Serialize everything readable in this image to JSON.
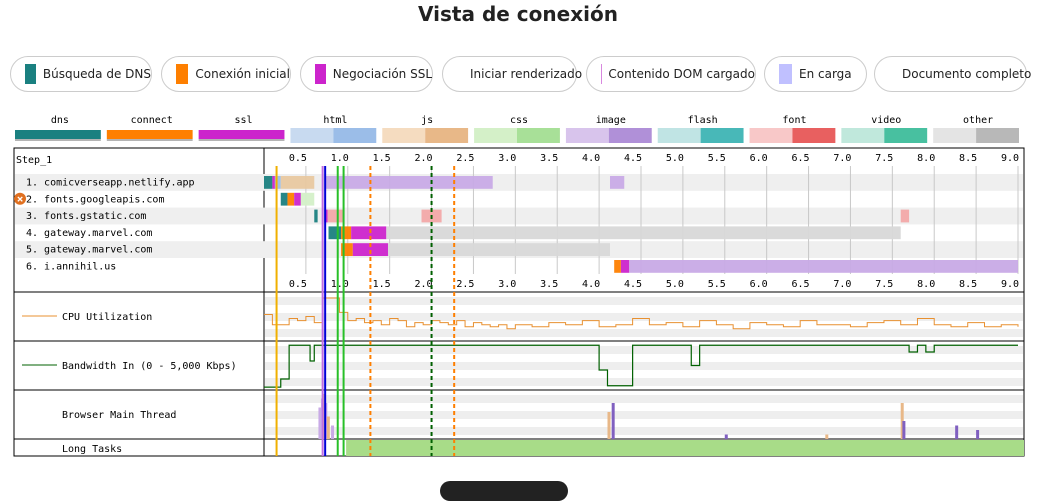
{
  "title": "Vista de conexión",
  "legend": [
    {
      "label": "Búsqueda de DNS",
      "color": "#1a8080",
      "shape": "box"
    },
    {
      "label": "Conexión inicial",
      "color": "#fe7f00",
      "shape": "box"
    },
    {
      "label": "Negociación SSL",
      "color": "#cc24cc",
      "shape": "box"
    },
    {
      "label": "Iniciar renderizado",
      "color": "#28c028",
      "shape": "line"
    },
    {
      "label": "Contenido DOM cargado",
      "color": "#d888df",
      "shape": "box"
    },
    {
      "label": "En carga",
      "color": "#c0c0ff",
      "shape": "box"
    },
    {
      "label": "Documento completo",
      "color": "#0000d8",
      "shape": "line"
    }
  ],
  "chart_data": {
    "type": "waterfall",
    "step_label": "Step_1",
    "x_unit": "seconds",
    "xlim": [
      0,
      9.0
    ],
    "x_ticks": [
      "0.5",
      "1.0",
      "1.5",
      "2.0",
      "2.5",
      "3.0",
      "3.5",
      "4.0",
      "4.5",
      "5.0",
      "5.5",
      "6.0",
      "6.5",
      "7.0",
      "7.5",
      "8.0",
      "8.5",
      "9.0"
    ],
    "type_legend": [
      {
        "name": "dns",
        "colors": [
          "#1a8080",
          "#1a8080"
        ]
      },
      {
        "name": "connect",
        "colors": [
          "#fe7f00",
          "#fe7f00"
        ]
      },
      {
        "name": "ssl",
        "colors": [
          "#cc24cc",
          "#cc24cc"
        ]
      },
      {
        "name": "html",
        "colors": [
          "#c8daf0",
          "#9bbde8"
        ]
      },
      {
        "name": "js",
        "colors": [
          "#f5dcc0",
          "#e8b888"
        ]
      },
      {
        "name": "css",
        "colors": [
          "#d4f0c8",
          "#a8e098"
        ]
      },
      {
        "name": "image",
        "colors": [
          "#d8c4ec",
          "#b090d8"
        ]
      },
      {
        "name": "flash",
        "colors": [
          "#c0e4e4",
          "#48b8b8"
        ]
      },
      {
        "name": "font",
        "colors": [
          "#f8c8c8",
          "#e86060"
        ]
      },
      {
        "name": "video",
        "colors": [
          "#c0e8dc",
          "#48c0a0"
        ]
      },
      {
        "name": "other",
        "colors": [
          "#e4e4e4",
          "#b8b8b8"
        ]
      }
    ],
    "requests": [
      {
        "label": "1. comicverseapp.netlify.app",
        "error": false,
        "segments": [
          {
            "start": 0.0,
            "end": 0.1,
            "color": "#1a8080"
          },
          {
            "start": 0.1,
            "end": 0.13,
            "color": "#cc24cc"
          },
          {
            "start": 0.13,
            "end": 0.2,
            "color": "#9bbde8"
          },
          {
            "start": 0.2,
            "end": 0.6,
            "color": "#e8c8a0"
          },
          {
            "start": 0.73,
            "end": 2.73,
            "color": "#c8aae6"
          },
          {
            "start": 4.13,
            "end": 4.3,
            "color": "#c8aae6"
          }
        ]
      },
      {
        "label": "2. fonts.googleapis.com",
        "error": true,
        "segments": [
          {
            "start": 0.2,
            "end": 0.28,
            "color": "#1a8080"
          },
          {
            "start": 0.28,
            "end": 0.36,
            "color": "#fe7f00"
          },
          {
            "start": 0.36,
            "end": 0.44,
            "color": "#cc24cc"
          },
          {
            "start": 0.44,
            "end": 0.6,
            "color": "#d4f0c8"
          }
        ]
      },
      {
        "label": "3. fonts.gstatic.com",
        "error": false,
        "segments": [
          {
            "start": 0.6,
            "end": 0.64,
            "color": "#1a8080"
          },
          {
            "start": 0.72,
            "end": 0.76,
            "color": "#cc24cc"
          },
          {
            "start": 0.76,
            "end": 0.95,
            "color": "#f2a8a8"
          },
          {
            "start": 1.88,
            "end": 2.12,
            "color": "#f2a8a8"
          },
          {
            "start": 7.6,
            "end": 7.7,
            "color": "#f2a8a8"
          }
        ]
      },
      {
        "label": "4. gateway.marvel.com",
        "error": false,
        "segments": [
          {
            "start": 0.77,
            "end": 0.92,
            "color": "#1a8080"
          },
          {
            "start": 0.92,
            "end": 1.04,
            "color": "#fe7f00"
          },
          {
            "start": 1.04,
            "end": 1.46,
            "color": "#cc24cc"
          },
          {
            "start": 1.46,
            "end": 7.6,
            "color": "#d8d8d8"
          }
        ]
      },
      {
        "label": "5. gateway.marvel.com",
        "error": false,
        "segments": [
          {
            "start": 0.92,
            "end": 1.06,
            "color": "#fe7f00"
          },
          {
            "start": 1.06,
            "end": 1.48,
            "color": "#cc24cc"
          },
          {
            "start": 1.48,
            "end": 4.13,
            "color": "#d8d8d8"
          }
        ]
      },
      {
        "label": "6. i.annihil.us",
        "error": false,
        "segments": [
          {
            "start": 4.18,
            "end": 4.26,
            "color": "#fe7f00"
          },
          {
            "start": 4.26,
            "end": 4.36,
            "color": "#cc24cc"
          },
          {
            "start": 4.36,
            "end": 9.0,
            "color": "#c8aae6"
          }
        ]
      }
    ],
    "markers": [
      {
        "name": "start",
        "x": 0.15,
        "color": "#f0b000",
        "style": "solid"
      },
      {
        "name": "dom-content",
        "x": 0.7,
        "color": "#c070e0",
        "style": "solid"
      },
      {
        "name": "document-complete",
        "x": 0.73,
        "color": "#0000d8",
        "style": "solid"
      },
      {
        "name": "start-render-1",
        "x": 0.88,
        "color": "#28c028",
        "style": "solid"
      },
      {
        "name": "start-render-2",
        "x": 0.95,
        "color": "#28c028",
        "style": "solid"
      },
      {
        "name": "load-1",
        "x": 1.27,
        "color": "#fe7f00",
        "style": "dashed"
      },
      {
        "name": "fully-loaded",
        "x": 2.0,
        "color": "#006000",
        "style": "dashed"
      },
      {
        "name": "load-2",
        "x": 2.27,
        "color": "#fe7f00",
        "style": "dashed"
      }
    ],
    "cpu": {
      "label": "CPU Utilization",
      "color": "#e89030",
      "x": [
        0,
        0.1,
        0.2,
        0.3,
        0.4,
        0.5,
        0.6,
        0.7,
        0.8,
        0.9,
        1.0,
        1.1,
        1.2,
        1.3,
        1.4,
        1.5,
        1.6,
        1.7,
        1.8,
        1.9,
        2.0,
        2.1,
        2.2,
        2.3,
        2.4,
        2.5,
        2.6,
        2.7,
        2.8,
        2.9,
        3.0,
        3.2,
        3.4,
        3.6,
        3.8,
        4.0,
        4.2,
        4.4,
        4.6,
        4.8,
        5.0,
        5.2,
        5.4,
        5.6,
        5.8,
        6.0,
        6.2,
        6.4,
        6.6,
        6.8,
        7.0,
        7.2,
        7.4,
        7.6,
        7.8,
        8.0,
        8.2,
        8.4,
        8.6,
        8.8,
        9.0
      ],
      "y": [
        55,
        30,
        30,
        45,
        40,
        50,
        35,
        95,
        95,
        60,
        40,
        45,
        35,
        40,
        30,
        45,
        40,
        25,
        35,
        30,
        40,
        35,
        30,
        40,
        25,
        35,
        30,
        25,
        30,
        20,
        30,
        25,
        35,
        30,
        40,
        25,
        30,
        45,
        30,
        35,
        25,
        40,
        30,
        20,
        35,
        30,
        25,
        40,
        30,
        30,
        25,
        35,
        40,
        30,
        45,
        30,
        25,
        35,
        25,
        30,
        25
      ]
    },
    "bandwidth": {
      "label": "Bandwidth In (0 - 5,000 Kbps)",
      "color": "#006000",
      "x": [
        0,
        0.1,
        0.2,
        0.25,
        0.3,
        0.5,
        0.55,
        0.6,
        1.0,
        1.1,
        1.5,
        2.0,
        2.5,
        3.0,
        3.4,
        3.5,
        4.0,
        4.1,
        4.2,
        4.3,
        4.4,
        4.5,
        4.9,
        5.0,
        5.1,
        5.2,
        5.5,
        6.0,
        6.5,
        7.0,
        7.5,
        7.6,
        7.7,
        7.8,
        7.9,
        8.0,
        8.5,
        8.8,
        9.0
      ],
      "y": [
        2,
        2,
        20,
        20,
        95,
        95,
        60,
        95,
        95,
        95,
        95,
        95,
        95,
        95,
        95,
        95,
        40,
        5,
        5,
        5,
        95,
        95,
        95,
        95,
        50,
        95,
        95,
        95,
        95,
        95,
        95,
        95,
        80,
        95,
        80,
        95,
        95,
        95,
        95
      ]
    },
    "main_thread": {
      "label": "Browser Main Thread",
      "bars": [
        {
          "x": 0.65,
          "h": 0.7,
          "color": "#c8aae6"
        },
        {
          "x": 0.68,
          "h": 0.9,
          "color": "#c8aae6"
        },
        {
          "x": 0.7,
          "h": 1.0,
          "color": "#e8b888"
        },
        {
          "x": 0.72,
          "h": 0.8,
          "color": "#c8aae6"
        },
        {
          "x": 0.75,
          "h": 0.5,
          "color": "#e8b888"
        },
        {
          "x": 0.8,
          "h": 0.3,
          "color": "#c8aae6"
        },
        {
          "x": 4.1,
          "h": 0.6,
          "color": "#e8b888"
        },
        {
          "x": 4.15,
          "h": 0.8,
          "color": "#8060c0"
        },
        {
          "x": 7.6,
          "h": 0.8,
          "color": "#e8b888"
        },
        {
          "x": 7.62,
          "h": 0.4,
          "color": "#8060c0"
        },
        {
          "x": 8.25,
          "h": 0.3,
          "color": "#8060c0"
        },
        {
          "x": 8.5,
          "h": 0.2,
          "color": "#8060c0"
        },
        {
          "x": 5.5,
          "h": 0.1,
          "color": "#8060c0"
        },
        {
          "x": 6.7,
          "h": 0.1,
          "color": "#e8b888"
        }
      ]
    },
    "long_tasks": {
      "label": "Long Tasks",
      "start": 0.98,
      "end": 9.0,
      "color": "#a8dc88"
    }
  }
}
